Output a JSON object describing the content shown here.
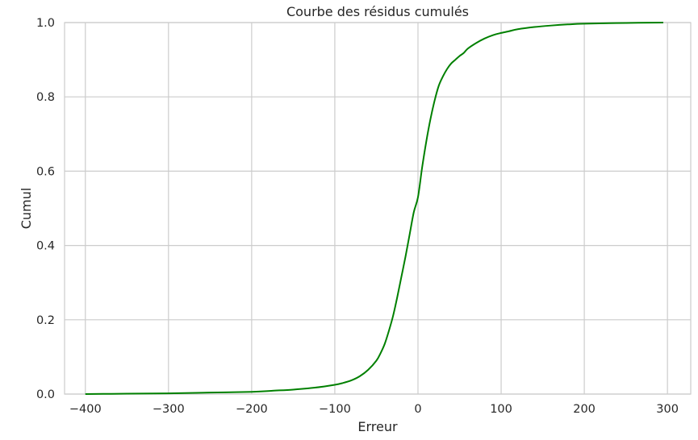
{
  "chart_data": {
    "type": "line",
    "title": "Courbe des résidus cumulés",
    "xlabel": "Erreur",
    "ylabel": "Cumul",
    "xlim": [
      -425,
      328
    ],
    "ylim": [
      0,
      1
    ],
    "x_ticks": [
      -400,
      -300,
      -200,
      -100,
      0,
      100,
      200,
      300
    ],
    "x_tick_labels": [
      "−400",
      "−300",
      "−200",
      "−100",
      "0",
      "100",
      "200",
      "300"
    ],
    "y_ticks": [
      0,
      0.2,
      0.4,
      0.6,
      0.8,
      1.0
    ],
    "y_tick_labels": [
      "0.0",
      "0.2",
      "0.4",
      "0.6",
      "0.8",
      "1.0"
    ],
    "grid": true,
    "colors": {
      "line": "#008000",
      "grid": "#cccccc",
      "background": "#ffffff"
    },
    "series": [
      {
        "x": [
          -400,
          -350,
          -300,
          -250,
          -200,
          -175,
          -150,
          -125,
          -100,
          -90,
          -80,
          -70,
          -60,
          -50,
          -45,
          -40,
          -35,
          -30,
          -25,
          -20,
          -15,
          -10,
          -5,
          0,
          5,
          10,
          15,
          20,
          25,
          30,
          35,
          40,
          45,
          50,
          55,
          60,
          70,
          80,
          90,
          100,
          110,
          120,
          140,
          160,
          180,
          200,
          250,
          295
        ],
        "y": [
          0.0,
          0.001,
          0.002,
          0.004,
          0.006,
          0.009,
          0.012,
          0.017,
          0.025,
          0.03,
          0.037,
          0.048,
          0.065,
          0.09,
          0.11,
          0.135,
          0.17,
          0.21,
          0.26,
          0.315,
          0.37,
          0.43,
          0.49,
          0.53,
          0.61,
          0.68,
          0.74,
          0.79,
          0.83,
          0.855,
          0.875,
          0.89,
          0.9,
          0.91,
          0.918,
          0.93,
          0.945,
          0.957,
          0.966,
          0.972,
          0.977,
          0.982,
          0.988,
          0.992,
          0.995,
          0.997,
          0.999,
          1.0
        ]
      }
    ]
  }
}
